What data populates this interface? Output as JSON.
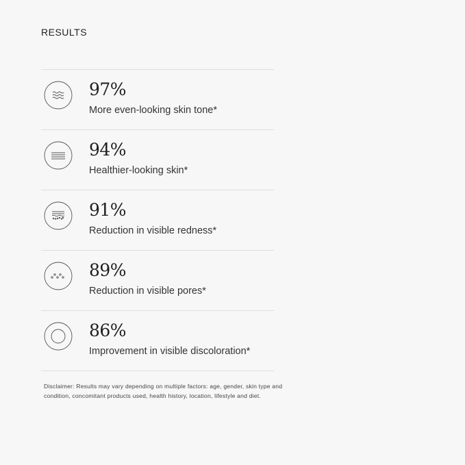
{
  "title": "RESULTS",
  "results": [
    {
      "value": "97%",
      "label": "More even-looking skin tone*",
      "icon": "waves-icon"
    },
    {
      "value": "94%",
      "label": "Healthier-looking skin*",
      "icon": "lines-icon"
    },
    {
      "value": "91%",
      "label": "Reduction in visible redness*",
      "icon": "redness-icon"
    },
    {
      "value": "89%",
      "label": "Reduction in visible pores*",
      "icon": "pores-icon"
    },
    {
      "value": "86%",
      "label": "Improvement in visible discoloration*",
      "icon": "ring-icon"
    }
  ],
  "disclaimer": "Disclaimer: Results may vary depending on multiple factors: age, gender, skin type and condition, concomitant products used, health history, location, lifestyle and diet."
}
